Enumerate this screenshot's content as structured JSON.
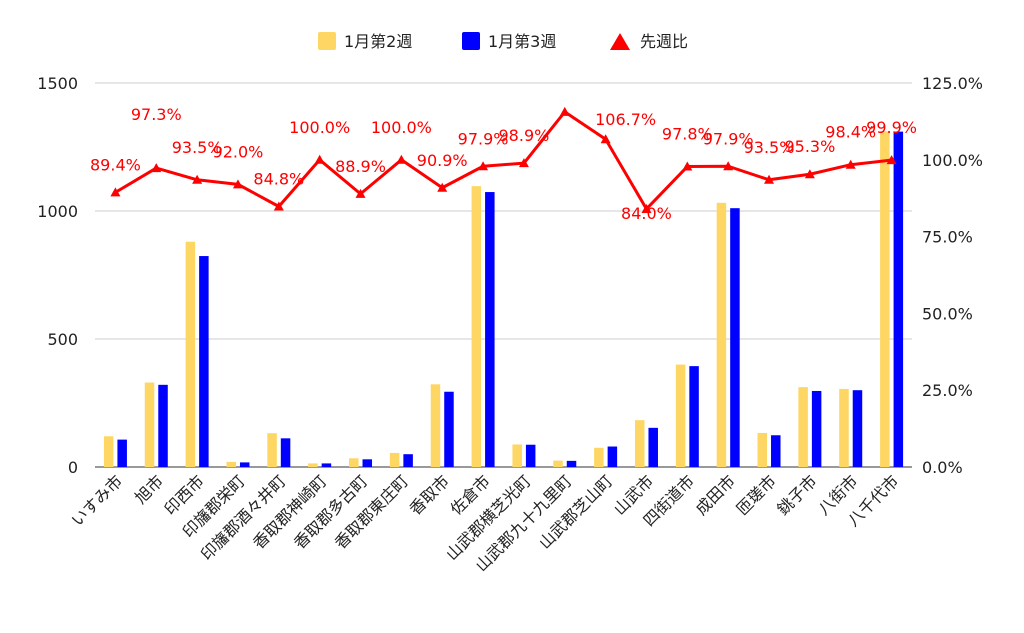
{
  "chart_data": {
    "type": "bar",
    "categories": [
      "いすみ市",
      "旭市",
      "印西市",
      "印旛郡栄町",
      "印旛郡酒々井町",
      "香取郡神崎町",
      "香取郡多古町",
      "香取郡東庄町",
      "香取市",
      "佐倉市",
      "山武郡横芝光町",
      "山武郡九十九里町",
      "山武郡芝山町",
      "山武市",
      "四街道市",
      "成田市",
      "匝瑳市",
      "銚子市",
      "八街市",
      "八千代市"
    ],
    "series": [
      {
        "name": "1月第2週",
        "type": "bar",
        "axis": "left",
        "color": "#fdd663",
        "values": [
          120,
          330,
          880,
          20,
          132,
          14,
          34,
          55,
          323,
          1097,
          88,
          25,
          75,
          183,
          400,
          1032,
          133,
          312,
          305,
          1311
        ]
      },
      {
        "name": "1月第3週",
        "type": "bar",
        "axis": "left",
        "color": "#0000ff",
        "values": [
          107,
          321,
          824,
          18,
          112,
          14,
          30,
          50,
          294,
          1074,
          87,
          24,
          80,
          153,
          394,
          1011,
          124,
          297,
          300,
          1310
        ]
      },
      {
        "name": "先週比",
        "type": "line",
        "axis": "right",
        "color": "#ff0000",
        "values": [
          89.4,
          97.3,
          93.5,
          92.0,
          84.8,
          100.0,
          88.9,
          100.0,
          90.9,
          97.9,
          98.9,
          115.6,
          106.7,
          84.0,
          97.8,
          97.9,
          93.5,
          95.3,
          98.4,
          99.9
        ],
        "labels": [
          "89.4%",
          "97.3%",
          "93.5%",
          "92.0%",
          "84.8%",
          "100.0%",
          "88.9%",
          "100.0%",
          "90.9%",
          "97.9%",
          "98.9%",
          "",
          "106.7%",
          "84.0%",
          "97.8%",
          "97.9%",
          "93.5%",
          "95.3%",
          "98.4%",
          "99.9%"
        ]
      }
    ],
    "y_left": {
      "min": 0,
      "max": 1500,
      "ticks": [
        0,
        500,
        1000,
        1500
      ]
    },
    "y_right": {
      "min": 0,
      "max": 125,
      "ticks": [
        0,
        25,
        50,
        75,
        100,
        125
      ],
      "tick_labels": [
        "0.0%",
        "25.0%",
        "50.0%",
        "75.0%",
        "100.0%",
        "125.0%"
      ]
    },
    "grid": true,
    "legend_position": "top"
  }
}
